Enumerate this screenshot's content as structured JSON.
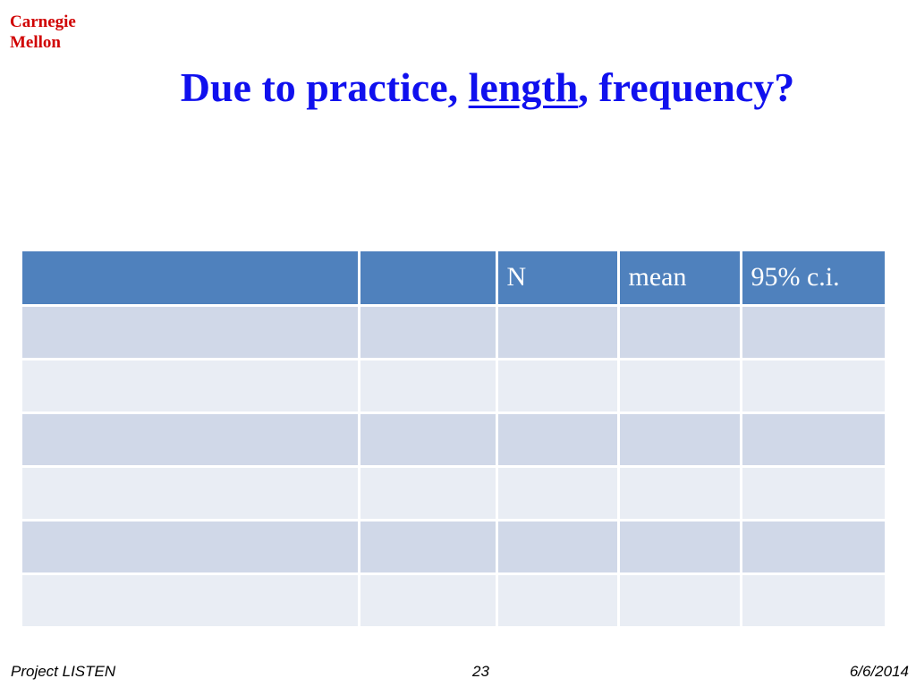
{
  "logo": {
    "line1": "Carnegie",
    "line2": "Mellon"
  },
  "title": {
    "before": "Due to practice, ",
    "underlined": "length",
    "after": ", frequency?"
  },
  "table": {
    "header": [
      "N",
      "mean",
      "95% c.i."
    ]
  },
  "footer": {
    "left": "Project LISTEN",
    "center": "23",
    "right": "6/6/2014"
  }
}
